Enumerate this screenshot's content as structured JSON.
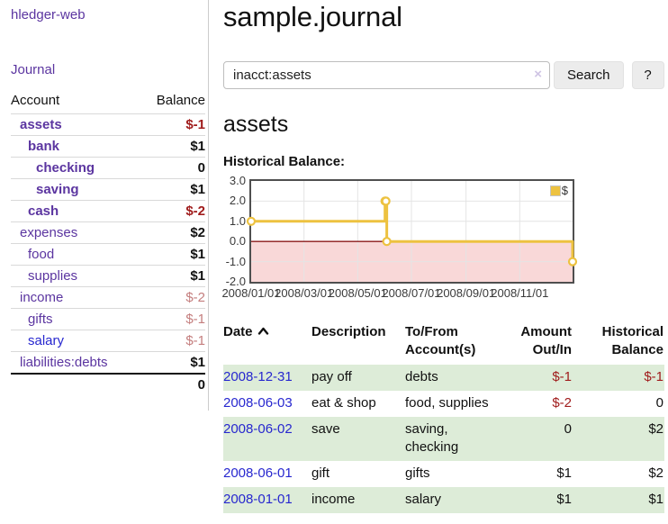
{
  "colors": {
    "accent_purple": "#5b35a0",
    "link_blue": "#2727cf",
    "negative_strong": "#a01c1c",
    "negative_faded": "#c47e7e",
    "row_stripe_green": "#ddecd8",
    "series_yellow": "#edc240",
    "negative_region_pink": "#f9d8d8",
    "zero_line_red": "#8b1a1a",
    "grid_line": "#e4e4e4",
    "plot_border": "#4f4f4f",
    "divider": "#cccccc",
    "button_bg": "#ececec"
  },
  "sidebar": {
    "app_title": "hledger-web",
    "nav": {
      "journal_label": "Journal"
    },
    "accounts_table": {
      "headers": {
        "account": "Account",
        "balance": "Balance"
      },
      "rows": [
        {
          "account": "assets",
          "balance": "$-1",
          "depth": 1,
          "emph": true,
          "balance_class": "strong-neg",
          "link_color": "purple"
        },
        {
          "account": "bank",
          "balance": "$1",
          "depth": 2,
          "emph": true,
          "balance_class": "strong",
          "link_color": "purple"
        },
        {
          "account": "checking",
          "balance": "0",
          "depth": 3,
          "emph": true,
          "balance_class": "strong",
          "link_color": "purple"
        },
        {
          "account": "saving",
          "balance": "$1",
          "depth": 3,
          "emph": true,
          "balance_class": "strong",
          "link_color": "purple"
        },
        {
          "account": "cash",
          "balance": "$-2",
          "depth": 2,
          "emph": true,
          "balance_class": "strong-neg",
          "link_color": "purple"
        },
        {
          "account": "expenses",
          "balance": "$2",
          "depth": 1,
          "emph": false,
          "balance_class": "strong",
          "link_color": "purple"
        },
        {
          "account": "food",
          "balance": "$1",
          "depth": 2,
          "emph": false,
          "balance_class": "strong",
          "link_color": "purple"
        },
        {
          "account": "supplies",
          "balance": "$1",
          "depth": 2,
          "emph": false,
          "balance_class": "strong",
          "link_color": "purple"
        },
        {
          "account": "income",
          "balance": "$-2",
          "depth": 1,
          "emph": false,
          "balance_class": "faded-neg",
          "link_color": "purple"
        },
        {
          "account": "gifts",
          "balance": "$-1",
          "depth": 2,
          "emph": false,
          "balance_class": "faded-neg",
          "link_color": "purple"
        },
        {
          "account": "salary",
          "balance": "$-1",
          "depth": 2,
          "emph": false,
          "balance_class": "faded-neg",
          "link_color": "blue"
        },
        {
          "account": "liabilities:debts",
          "balance": "$1",
          "depth": 1,
          "emph": false,
          "balance_class": "strong",
          "link_color": "purple"
        }
      ],
      "total": "0"
    }
  },
  "main": {
    "page_title": "sample.journal",
    "search": {
      "value": "inacct:assets",
      "clear_icon": "×",
      "button_label": "Search",
      "help_label": "?"
    },
    "account_heading": "assets",
    "chart_label": "Historical Balance:"
  },
  "chart_data": {
    "type": "line",
    "style": "steps",
    "title": "Historical Balance:",
    "legend": {
      "label": "$",
      "position": "top-right"
    },
    "series": [
      {
        "name": "$",
        "points": [
          {
            "date": "2008/01/01",
            "day": 0,
            "value": 1
          },
          {
            "date": "2008/06/01",
            "day": 152,
            "value": 2
          },
          {
            "date": "2008/06/02",
            "day": 153,
            "value": 2
          },
          {
            "date": "2008/06/03",
            "day": 154,
            "value": 0
          },
          {
            "date": "2008/12/31",
            "day": 365,
            "value": -1
          }
        ]
      }
    ],
    "xlim": [
      0,
      365
    ],
    "ylim": [
      -2,
      3
    ],
    "yticks": [
      {
        "label": "3.0",
        "value": 3
      },
      {
        "label": "2.0",
        "value": 2
      },
      {
        "label": "1.0",
        "value": 1
      },
      {
        "label": "0.0",
        "value": 0
      },
      {
        "label": "-1.0",
        "value": -1
      },
      {
        "label": "-2.0",
        "value": -2
      }
    ],
    "xticks": [
      {
        "label": "2008/01/01",
        "day": 0
      },
      {
        "label": "2008/03/01",
        "day": 60
      },
      {
        "label": "2008/05/01",
        "day": 121
      },
      {
        "label": "2008/07/01",
        "day": 182
      },
      {
        "label": "2008/09/01",
        "day": 244
      },
      {
        "label": "2008/11/01",
        "day": 305
      }
    ],
    "grid": true,
    "negative_region_shaded": true,
    "zero_line": true
  },
  "transactions": {
    "headers": {
      "date": "Date",
      "description": "Description",
      "tofrom_line1": "To/From",
      "tofrom_line2": "Account(s)",
      "amount_line1": "Amount",
      "amount_line2": "Out/In",
      "balance_line1": "Historical",
      "balance_line2": "Balance"
    },
    "rows": [
      {
        "date": "2008-12-31",
        "description": "pay off",
        "accounts": "debts",
        "amount": "$-1",
        "balance": "$-1",
        "amount_negative": true,
        "balance_negative": true
      },
      {
        "date": "2008-06-03",
        "description": "eat & shop",
        "accounts": "food, supplies",
        "amount": "$-2",
        "balance": "0",
        "amount_negative": true,
        "balance_negative": false
      },
      {
        "date": "2008-06-02",
        "description": "save",
        "accounts": "saving, checking",
        "amount": "0",
        "balance": "$2",
        "amount_negative": false,
        "balance_negative": false
      },
      {
        "date": "2008-06-01",
        "description": "gift",
        "accounts": "gifts",
        "amount": "$1",
        "balance": "$2",
        "amount_negative": false,
        "balance_negative": false
      },
      {
        "date": "2008-01-01",
        "description": "income",
        "accounts": "salary",
        "amount": "$1",
        "balance": "$1",
        "amount_negative": false,
        "balance_negative": false
      }
    ]
  }
}
